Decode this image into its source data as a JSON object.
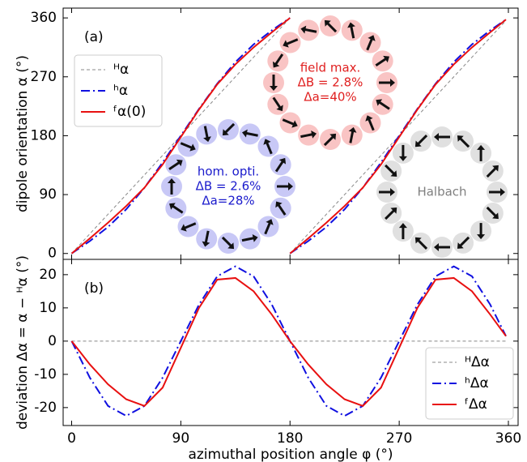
{
  "chart_data": [
    {
      "type": "line",
      "panel_label": "(a)",
      "ylabel": "dipole orientation α (°)",
      "xlim": [
        -7,
        368
      ],
      "ylim": [
        -9,
        375
      ],
      "xticks": [
        0,
        90,
        180,
        270,
        360
      ],
      "yticks": [
        0,
        90,
        180,
        270,
        360
      ],
      "legend": "upper left",
      "x": [
        0,
        15,
        30,
        45,
        60,
        75,
        90,
        105,
        120,
        135,
        150,
        165,
        180,
        180,
        180,
        195,
        210,
        225,
        240,
        255,
        270,
        285,
        300,
        315,
        330,
        345,
        358
      ],
      "series": [
        {
          "name": "ᴴα",
          "color": "#888888",
          "linestyle": "dashed",
          "values": [
            0,
            30,
            60,
            90,
            120,
            150,
            180,
            210,
            240,
            270,
            300,
            330,
            360,
            null,
            0,
            30,
            60,
            90,
            120,
            150,
            180,
            210,
            240,
            270,
            300,
            330,
            356
          ]
        },
        {
          "name": "ʰα",
          "color": "#1010e0",
          "linestyle": "dashdot",
          "values": [
            0,
            19,
            40.5,
            67.5,
            100.5,
            139,
            180,
            221,
            259.5,
            292.5,
            319.5,
            341,
            360,
            null,
            0,
            19,
            40.5,
            67.5,
            100.5,
            139,
            180,
            221,
            259.5,
            292.5,
            319.5,
            341,
            357.5
          ]
        },
        {
          "name": "ᶠα(0)",
          "color": "#e81010",
          "linestyle": "solid",
          "values": [
            0,
            23,
            47,
            72.5,
            100.5,
            136,
            178,
            220,
            258.5,
            289,
            315,
            338,
            360,
            null,
            0,
            23,
            47,
            72.5,
            100.5,
            136,
            178,
            220,
            258.5,
            289,
            315,
            338,
            357.5
          ]
        }
      ],
      "annotations": [
        {
          "text": [
            "field max.",
            "ΔB = 2.8%",
            "Δa=40%"
          ],
          "color": "#e02020"
        },
        {
          "text": [
            "hom. opti.",
            "ΔB = 2.6%",
            "Δa=28%"
          ],
          "color": "#1a1acc"
        },
        {
          "text": [
            "Halbach"
          ],
          "color": "#808080"
        }
      ]
    },
    {
      "type": "line",
      "panel_label": "(b)",
      "ylabel": "deviation Δα = α − ᴴα (°)",
      "xlabel": "azimuthal position angle φ (°)",
      "xlim": [
        -7,
        368
      ],
      "ylim": [
        -25.4,
        24.6
      ],
      "xticks": [
        0,
        90,
        180,
        270,
        360
      ],
      "yticks": [
        -20,
        -10,
        0,
        10,
        20
      ],
      "legend": "lower right",
      "x": [
        0,
        15,
        30,
        45,
        60,
        75,
        90,
        105,
        120,
        135,
        150,
        165,
        180,
        195,
        210,
        225,
        240,
        255,
        270,
        285,
        300,
        315,
        330,
        345,
        358
      ],
      "series": [
        {
          "name": "ᴴΔα",
          "color": "#888888",
          "linestyle": "dashed",
          "values": [
            0,
            0,
            0,
            0,
            0,
            0,
            0,
            0,
            0,
            0,
            0,
            0,
            0,
            0,
            0,
            0,
            0,
            0,
            0,
            0,
            0,
            0,
            0,
            0,
            0
          ]
        },
        {
          "name": "ʰΔα",
          "color": "#1010e0",
          "linestyle": "dashdot",
          "values": [
            0,
            -11,
            -19.5,
            -22.5,
            -19.5,
            -11,
            0,
            11,
            19.5,
            22.5,
            19.5,
            11,
            0,
            -11,
            -19.5,
            -22.5,
            -19.5,
            -11,
            0,
            11,
            19.5,
            22.5,
            19.5,
            11,
            1.5
          ]
        },
        {
          "name": "ᶠΔα",
          "color": "#e81010",
          "linestyle": "solid",
          "values": [
            0,
            -7,
            -13,
            -17.5,
            -19.5,
            -14,
            -2,
            10,
            18.5,
            19,
            15,
            8,
            0,
            -7,
            -13,
            -17.5,
            -19.5,
            -14,
            -2,
            10,
            18.5,
            19,
            15,
            8,
            1.5
          ]
        }
      ]
    }
  ]
}
